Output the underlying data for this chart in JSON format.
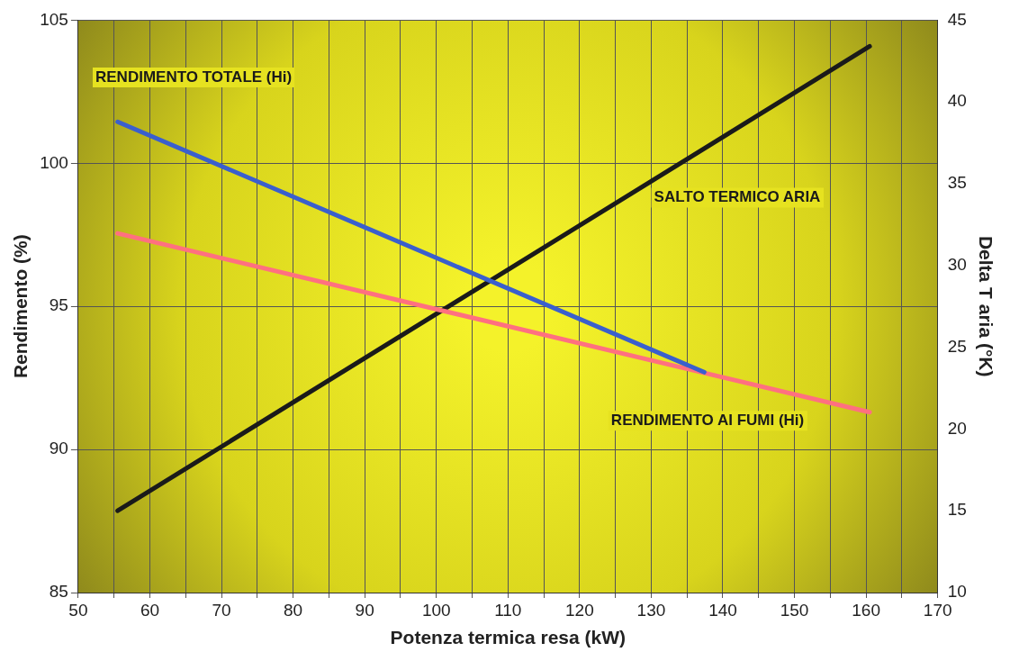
{
  "chart_data": {
    "type": "line",
    "xlabel": "Potenza termica resa (kW)",
    "ylabel": "Rendimento (%)",
    "y2label": "Delta T aria (°K)",
    "xlim": [
      50,
      170
    ],
    "xticks": [
      50,
      {
        "value": 55,
        "label": null
      },
      60,
      {
        "value": 65,
        "label": null
      },
      70,
      {
        "value": 75,
        "label": null
      },
      80,
      {
        "value": 85,
        "label": null
      },
      90,
      {
        "value": 95,
        "label": null
      },
      100,
      {
        "value": 105,
        "label": null
      },
      110,
      {
        "value": 115,
        "label": null
      },
      120,
      {
        "value": 125,
        "label": null
      },
      130,
      {
        "value": 135,
        "label": null
      },
      140,
      {
        "value": 145,
        "label": null
      },
      150,
      {
        "value": 155,
        "label": null
      },
      160,
      {
        "value": 165,
        "label": null
      },
      170
    ],
    "ylim": [
      85,
      105
    ],
    "yticks": [
      85,
      90,
      95,
      100,
      105
    ],
    "y2lim": [
      10,
      45
    ],
    "y2ticks": [
      10,
      15,
      20,
      25,
      30,
      35,
      40,
      45
    ],
    "grid": true,
    "legend": false,
    "marker": "none",
    "line_style": "solid",
    "series": [
      {
        "name": "RENDIMENTO TOTALE (Hi)",
        "color": "#3a5fcd",
        "x": [
          55.5,
          137.4
        ],
        "values": [
          101.45,
          92.7
        ]
      },
      {
        "name": "RENDIMENTO AI FUMI (Hi)",
        "color": "#ff7080",
        "x": [
          55.5,
          160.5
        ],
        "values": [
          97.55,
          91.3
        ]
      },
      {
        "name": "SALTO TERMICO ARIA",
        "color": "#1a1a1a",
        "axis": "y2",
        "x": [
          55.5,
          160.5
        ],
        "values": [
          15,
          43.4
        ]
      }
    ]
  }
}
